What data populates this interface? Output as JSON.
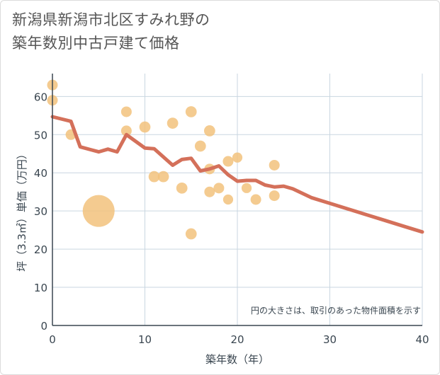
{
  "title_line1": "新潟県新潟市北区すみれ野の",
  "title_line2": "築年数別中古戸建て価格",
  "chart_data": {
    "type": "scatter",
    "xlabel": "築年数（年）",
    "ylabel": "坪（3.3㎡）単価（万円）",
    "xlim": [
      0,
      40
    ],
    "ylim": [
      0,
      66
    ],
    "x_ticks": [
      0,
      10,
      20,
      30,
      40
    ],
    "y_ticks": [
      0,
      10,
      20,
      30,
      40,
      50,
      60
    ],
    "grid": true,
    "note": "円の大きさは、取引のあった物件面積を示す",
    "colors": {
      "points": "#f2c27c",
      "line": "#d4705a",
      "grid": "#c9d6e0",
      "axis": "#3a4650"
    },
    "points": [
      {
        "x": 0,
        "y": 63,
        "size": 1
      },
      {
        "x": 0,
        "y": 59,
        "size": 1
      },
      {
        "x": 2,
        "y": 50,
        "size": 1
      },
      {
        "x": 5,
        "y": 30,
        "size": 9
      },
      {
        "x": 8,
        "y": 56,
        "size": 1
      },
      {
        "x": 8,
        "y": 51,
        "size": 1
      },
      {
        "x": 10,
        "y": 52,
        "size": 1.1
      },
      {
        "x": 11,
        "y": 39,
        "size": 1.1
      },
      {
        "x": 12,
        "y": 39,
        "size": 1.1
      },
      {
        "x": 13,
        "y": 53,
        "size": 1.1
      },
      {
        "x": 14,
        "y": 36,
        "size": 1.1
      },
      {
        "x": 15,
        "y": 56,
        "size": 1.1
      },
      {
        "x": 15,
        "y": 24,
        "size": 1.1
      },
      {
        "x": 16,
        "y": 47,
        "size": 1.1
      },
      {
        "x": 17,
        "y": 51,
        "size": 1.1
      },
      {
        "x": 17,
        "y": 41,
        "size": 1
      },
      {
        "x": 17,
        "y": 35,
        "size": 1
      },
      {
        "x": 18,
        "y": 36,
        "size": 1
      },
      {
        "x": 19,
        "y": 43,
        "size": 1
      },
      {
        "x": 19,
        "y": 33,
        "size": 0.9
      },
      {
        "x": 20,
        "y": 44,
        "size": 0.9
      },
      {
        "x": 21,
        "y": 36,
        "size": 0.9
      },
      {
        "x": 22,
        "y": 33,
        "size": 1
      },
      {
        "x": 24,
        "y": 42,
        "size": 1
      },
      {
        "x": 24,
        "y": 34,
        "size": 1
      }
    ],
    "trend": {
      "x": [
        0,
        2,
        3,
        5,
        6,
        7,
        8,
        10,
        11,
        13,
        14,
        15,
        16,
        17,
        18,
        19,
        20,
        21,
        22,
        23,
        24,
        25,
        26,
        28,
        30,
        32,
        34,
        36,
        38,
        40
      ],
      "y": [
        54.7,
        53.5,
        46.8,
        45.5,
        46.2,
        45.5,
        50.0,
        46.5,
        46.3,
        42.0,
        43.5,
        43.8,
        40.5,
        41.0,
        41.8,
        39.5,
        37.8,
        38.0,
        38.0,
        36.8,
        36.3,
        36.5,
        35.8,
        33.5,
        32.0,
        30.5,
        29.0,
        27.5,
        26.0,
        24.5
      ]
    }
  }
}
